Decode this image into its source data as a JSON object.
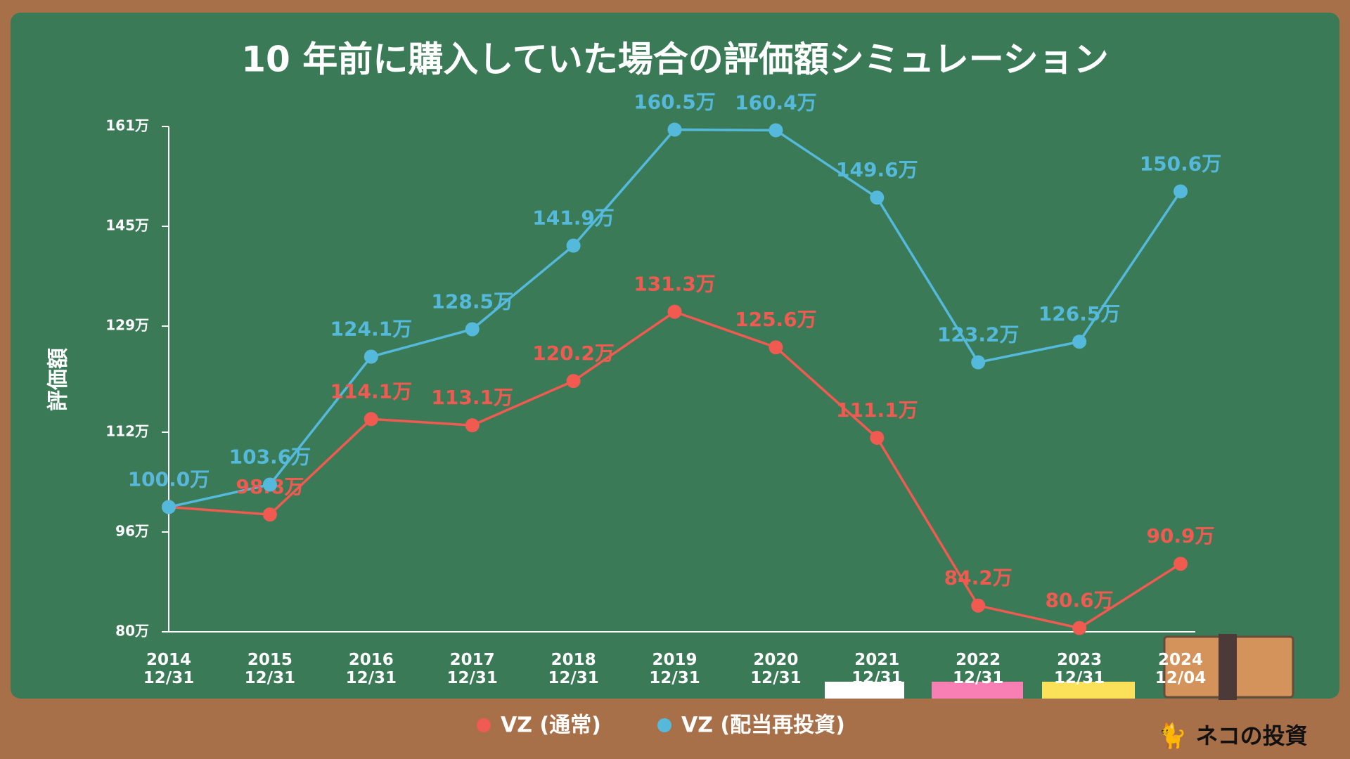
{
  "chart_data": {
    "type": "line",
    "title": "10 年前に購入していた場合の評価額シミュレーション",
    "y_label": "評価額",
    "categories": [
      "2014\n12/31",
      "2015\n12/31",
      "2016\n12/31",
      "2017\n12/31",
      "2018\n12/31",
      "2019\n12/31",
      "2020\n12/31",
      "2021\n12/31",
      "2022\n12/31",
      "2023\n12/31",
      "2024\n12/04"
    ],
    "ylim": [
      80,
      161
    ],
    "yticks": [
      {
        "value": 80,
        "label": "80万"
      },
      {
        "value": 96,
        "label": "96万"
      },
      {
        "value": 112,
        "label": "112万"
      },
      {
        "value": 129,
        "label": "129万"
      },
      {
        "value": 145,
        "label": "145万"
      },
      {
        "value": 161,
        "label": "161万"
      }
    ],
    "grid": false,
    "legend": "bottom",
    "series": [
      {
        "name": "VZ (通常)",
        "color": "#f05a50",
        "values": [
          100.0,
          98.8,
          114.1,
          113.1,
          120.2,
          131.3,
          125.6,
          111.1,
          84.2,
          80.6,
          90.9
        ],
        "value_labels": [
          "100.0万",
          "98.8万",
          "114.1万",
          "113.1万",
          "120.2万",
          "131.3万",
          "125.6万",
          "111.1万",
          "84.2万",
          "80.6万",
          "90.9万"
        ]
      },
      {
        "name": "VZ (配当再投資)",
        "color": "#55b9dc",
        "values": [
          100.0,
          103.6,
          124.1,
          128.5,
          141.9,
          160.5,
          160.4,
          149.6,
          123.2,
          126.5,
          150.6
        ],
        "value_labels": [
          "100.0万",
          "103.6万",
          "124.1万",
          "128.5万",
          "141.9万",
          "160.5万",
          "160.4万",
          "149.6万",
          "123.2万",
          "126.5万",
          "150.6万"
        ]
      }
    ],
    "brand": "ネコの投資"
  }
}
